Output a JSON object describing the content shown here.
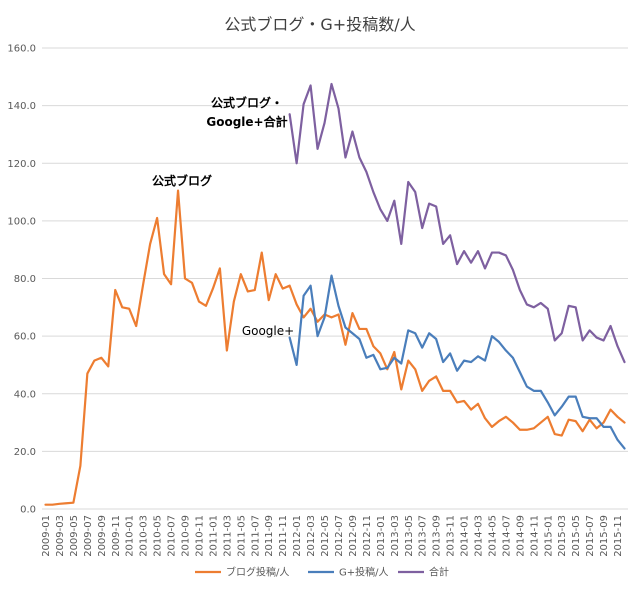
{
  "chart_data": {
    "type": "line",
    "title": "公式ブログ・G+投稿数/人",
    "ylim": [
      0,
      160
    ],
    "yticks": [
      "0.0",
      "20.0",
      "40.0",
      "60.0",
      "80.0",
      "100.0",
      "120.0",
      "140.0",
      "160.0"
    ],
    "grid": true,
    "legend_position": "bottom",
    "x": [
      "2009-01",
      "2009-02",
      "2009-03",
      "2009-04",
      "2009-05",
      "2009-06",
      "2009-07",
      "2009-08",
      "2009-09",
      "2009-10",
      "2009-11",
      "2009-12",
      "2010-01",
      "2010-02",
      "2010-03",
      "2010-04",
      "2010-05",
      "2010-06",
      "2010-07",
      "2010-08",
      "2010-09",
      "2010-10",
      "2010-11",
      "2010-12",
      "2011-01",
      "2011-02",
      "2011-03",
      "2011-04",
      "2011-05",
      "2011-06",
      "2011-07",
      "2011-08",
      "2011-09",
      "2011-10",
      "2011-11",
      "2011-12",
      "2012-01",
      "2012-02",
      "2012-03",
      "2012-04",
      "2012-05",
      "2012-06",
      "2012-07",
      "2012-08",
      "2012-09",
      "2012-10",
      "2012-11",
      "2012-12",
      "2013-01",
      "2013-02",
      "2013-03",
      "2013-04",
      "2013-05",
      "2013-06",
      "2013-07",
      "2013-08",
      "2013-09",
      "2013-10",
      "2013-11",
      "2013-12",
      "2014-01",
      "2014-02",
      "2014-03",
      "2014-04",
      "2014-05",
      "2014-06",
      "2014-07",
      "2014-08",
      "2014-09",
      "2014-10",
      "2014-11",
      "2014-12",
      "2015-01",
      "2015-02",
      "2015-03",
      "2015-04",
      "2015-05",
      "2015-06",
      "2015-07",
      "2015-08",
      "2015-09",
      "2015-10",
      "2015-11",
      "2015-12"
    ],
    "xtick_labels": [
      "2009-01",
      "2009-03",
      "2009-05",
      "2009-07",
      "2009-09",
      "2009-11",
      "2010-01",
      "2010-03",
      "2010-05",
      "2010-07",
      "2010-09",
      "2010-11",
      "2011-01",
      "2011-03",
      "2011-05",
      "2011-07",
      "2011-09",
      "2011-11",
      "2012-01",
      "2012-03",
      "2012-05",
      "2012-07",
      "2012-09",
      "2012-11",
      "2013-01",
      "2013-03",
      "2013-05",
      "2013-07",
      "2013-09",
      "2013-11",
      "2014-01",
      "2014-03",
      "2014-05",
      "2014-07",
      "2014-09",
      "2014-11",
      "2015-01",
      "2015-03",
      "2015-05",
      "2015-07",
      "2015-09",
      "2015-11"
    ],
    "series": [
      {
        "name": "ブログ投稿/人",
        "color": "#ed7d31",
        "values": [
          1.5,
          1.5,
          1.8,
          2,
          2.2,
          15,
          47,
          51.5,
          52.5,
          49.5,
          76,
          70,
          69.5,
          63.5,
          78,
          92,
          101,
          81.5,
          78,
          110.5,
          80,
          78.5,
          72,
          70.5,
          76.5,
          83.5,
          55,
          72,
          81.5,
          75.5,
          76,
          89,
          72.5,
          81.5,
          76.5,
          77.5,
          71,
          66.5,
          69.5,
          65,
          67.5,
          66.5,
          67.5,
          57,
          68,
          62.5,
          62.5,
          56.5,
          54,
          48.5,
          54.5,
          41.5,
          51.5,
          48.5,
          41,
          44.5,
          46,
          41,
          41,
          37,
          37.5,
          34.5,
          36.5,
          31.5,
          28.5,
          30.5,
          32,
          30,
          27.5,
          27.5,
          28,
          30,
          32,
          26,
          25.5,
          31,
          30.5,
          27,
          31,
          28,
          30,
          34.5,
          32,
          30
        ]
      },
      {
        "name": "G+投稿/人",
        "color": "#4a7ebb",
        "values": [
          null,
          null,
          null,
          null,
          null,
          null,
          null,
          null,
          null,
          null,
          null,
          null,
          null,
          null,
          null,
          null,
          null,
          null,
          null,
          null,
          null,
          null,
          null,
          null,
          null,
          null,
          null,
          null,
          null,
          null,
          null,
          null,
          null,
          null,
          null,
          59.5,
          50,
          74,
          77.5,
          60,
          66.5,
          81,
          70.5,
          63,
          61,
          59,
          52.5,
          53.5,
          48.5,
          49,
          52.5,
          50.5,
          62,
          61,
          56,
          61,
          59,
          51,
          54,
          48,
          51.5,
          51,
          53,
          51.5,
          60,
          58,
          55,
          52.5,
          47.5,
          42.5,
          41,
          41,
          37,
          32.5,
          35.5,
          39,
          39,
          32,
          31.5,
          31.5,
          28.5,
          28.5,
          24,
          21
        ]
      },
      {
        "name": "合計",
        "color": "#7e60a0",
        "values": [
          null,
          null,
          null,
          null,
          null,
          null,
          null,
          null,
          null,
          null,
          null,
          null,
          null,
          null,
          null,
          null,
          null,
          null,
          null,
          null,
          null,
          null,
          null,
          null,
          null,
          null,
          null,
          null,
          null,
          null,
          null,
          null,
          null,
          null,
          null,
          137,
          120,
          140.5,
          147,
          125,
          134,
          147.5,
          139,
          122,
          131,
          122,
          117,
          110,
          104,
          100,
          107,
          92,
          113.5,
          110,
          97.5,
          106,
          105,
          92,
          95,
          85,
          89.5,
          85.5,
          89.5,
          83.5,
          89,
          89,
          88,
          83,
          76,
          71,
          70,
          71.5,
          69.5,
          58.5,
          61,
          70.5,
          70,
          58.5,
          62,
          59.5,
          58.5,
          63.5,
          56.5,
          51
        ]
      }
    ],
    "annotations": [
      "公式ブログ",
      "公式ブログ・",
      "Google+合計",
      "Google+"
    ]
  }
}
